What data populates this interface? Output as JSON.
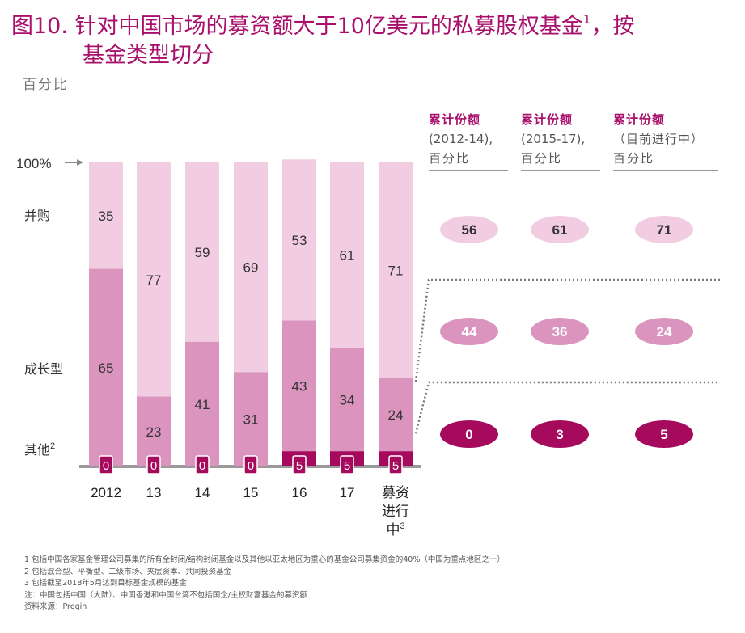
{
  "title": {
    "text": "图10. 针对中国市场的募资额大于10亿美元的私募股权基金",
    "sup": "1",
    "text_after": "，按",
    "line2": "基金类型切分"
  },
  "subtitle": "百分比",
  "chart_data": {
    "type": "bar",
    "stacked": true,
    "ylim": [
      0,
      100
    ],
    "y_marker": "100%",
    "categories": [
      "2012",
      "13",
      "14",
      "15",
      "16",
      "17",
      "募资进行中"
    ],
    "category_sup": [
      "",
      "",
      "",
      "",
      "",
      "",
      "3"
    ],
    "series": [
      {
        "name": "其他",
        "sup": "2",
        "color": "#a50a5d",
        "values": [
          0,
          0,
          0,
          0,
          5,
          5,
          5
        ]
      },
      {
        "name": "成长型",
        "color": "#da94be",
        "values": [
          65,
          23,
          41,
          31,
          43,
          34,
          24
        ]
      },
      {
        "name": "并购",
        "color": "#f2cde1",
        "values": [
          35,
          77,
          59,
          69,
          53,
          61,
          71
        ]
      }
    ],
    "cumulative": {
      "headers": [
        {
          "line1": "累计份额",
          "line2": "(2012-14),",
          "line3": "百分比"
        },
        {
          "line1": "累计份额",
          "line2": "(2015-17),",
          "line3": "百分比"
        },
        {
          "line1": "累计份额",
          "line2": "（目前进行中）",
          "line3": "百分比"
        }
      ],
      "buyout": [
        56,
        61,
        71
      ],
      "growth": [
        44,
        36,
        24
      ],
      "other": [
        0,
        3,
        5
      ]
    }
  },
  "notes": [
    "1 包括中国各家基金管理公司募集的所有全封闭/结构封闭基金以及其他以亚太地区为重心的基金公司募集资金的40%（中国为重点地区之一）",
    "2 包括混合型、平衡型、二级市场、夹层资本、共同投资基金",
    "3 包括截至2018年5月达到目标基金规模的基金",
    "注：中国包括中国（大陆）、中国香港和中国台湾不包括国企/主权财富基金的募资额",
    "资料来源：Preqin"
  ],
  "colors": {
    "accent": "#a8106b",
    "other": "#a50a5d",
    "growth": "#da94be",
    "buyout": "#f2cde1"
  }
}
